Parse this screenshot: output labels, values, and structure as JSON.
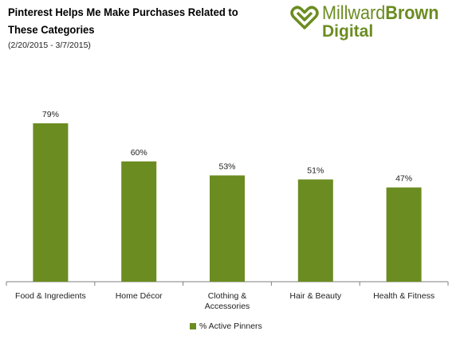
{
  "header": {
    "title": "Pinterest Helps Me Make Purchases Related to These Categories",
    "subtitle": "(2/20/2015 - 3/7/2015)"
  },
  "logo": {
    "brand_prefix": "Millward",
    "brand_suffix": "Brown",
    "sub": "Digital",
    "icon": "heart-knot-icon"
  },
  "colors": {
    "bar": "#6b8c21",
    "brand": "#6b8c21",
    "axis": "#7f7f7f"
  },
  "chart_data": {
    "type": "bar",
    "categories": [
      "Food & Ingredients",
      "Home Décor",
      "Clothing & Accessories",
      "Hair & Beauty",
      "Health & Fitness"
    ],
    "category_lines": [
      [
        "Food & Ingredients"
      ],
      [
        "Home Décor"
      ],
      [
        "Clothing &",
        "Accessories"
      ],
      [
        "Hair & Beauty"
      ],
      [
        "Health & Fitness"
      ]
    ],
    "series": [
      {
        "name": "% Active Pinners",
        "values": [
          79,
          60,
          53,
          51,
          47
        ]
      }
    ],
    "value_labels": [
      "79%",
      "60%",
      "53%",
      "51%",
      "47%"
    ],
    "ylim": [
      0,
      100
    ],
    "grid": false,
    "legend_position": "bottom-center"
  },
  "legend": {
    "label": "% Active Pinners"
  }
}
